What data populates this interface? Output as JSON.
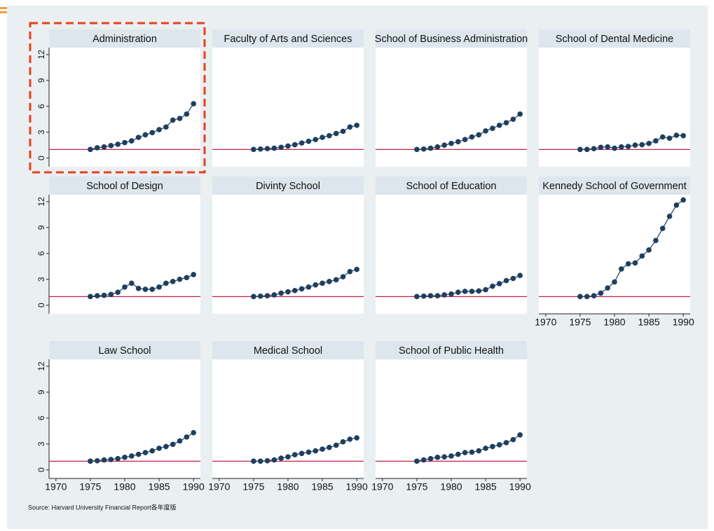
{
  "axes": {
    "xlim": [
      1969,
      1991
    ],
    "xticks": [
      1970,
      1975,
      1980,
      1985,
      1990
    ],
    "ylim": [
      -1,
      12.8
    ],
    "yticks": [
      0,
      3,
      6,
      9,
      12
    ],
    "reference_line": 1,
    "reference_color": "#c0204a",
    "line_color": "#1f3f5f"
  },
  "chart_data": [
    {
      "type": "line",
      "title": "Administration",
      "x": [
        1975,
        1976,
        1977,
        1978,
        1979,
        1980,
        1981,
        1982,
        1983,
        1984,
        1985,
        1986,
        1987,
        1988,
        1989,
        1990
      ],
      "values": [
        1,
        1.2,
        1.3,
        1.45,
        1.6,
        1.8,
        2.0,
        2.4,
        2.7,
        2.95,
        3.3,
        3.6,
        4.4,
        4.6,
        5.1,
        6.3
      ]
    },
    {
      "type": "line",
      "title": "Faculty of Arts and Sciences",
      "x": [
        1975,
        1976,
        1977,
        1978,
        1979,
        1980,
        1981,
        1982,
        1983,
        1984,
        1985,
        1986,
        1987,
        1988,
        1989,
        1990
      ],
      "values": [
        1,
        1.05,
        1.1,
        1.15,
        1.25,
        1.4,
        1.55,
        1.75,
        1.95,
        2.15,
        2.4,
        2.6,
        2.85,
        3.1,
        3.6,
        3.8
      ]
    },
    {
      "type": "line",
      "title": "School of Business Administration",
      "x": [
        1975,
        1976,
        1977,
        1978,
        1979,
        1980,
        1981,
        1982,
        1983,
        1984,
        1985,
        1986,
        1987,
        1988,
        1989,
        1990
      ],
      "values": [
        1,
        1.05,
        1.15,
        1.3,
        1.5,
        1.7,
        1.9,
        2.15,
        2.45,
        2.7,
        3.15,
        3.45,
        3.8,
        4.1,
        4.5,
        5.1
      ]
    },
    {
      "type": "line",
      "title": "School of Dental Medicine",
      "x": [
        1975,
        1976,
        1977,
        1978,
        1979,
        1980,
        1981,
        1982,
        1983,
        1984,
        1985,
        1986,
        1987,
        1988,
        1989,
        1990
      ],
      "values": [
        1,
        1.0,
        1.1,
        1.25,
        1.3,
        1.15,
        1.3,
        1.35,
        1.5,
        1.55,
        1.7,
        2.0,
        2.45,
        2.3,
        2.65,
        2.6
      ]
    },
    {
      "type": "line",
      "title": "School of Design",
      "x": [
        1975,
        1976,
        1977,
        1978,
        1979,
        1980,
        1981,
        1982,
        1983,
        1984,
        1985,
        1986,
        1987,
        1988,
        1989,
        1990
      ],
      "values": [
        1,
        1.1,
        1.15,
        1.25,
        1.5,
        2.1,
        2.55,
        1.95,
        1.85,
        1.85,
        2.1,
        2.55,
        2.75,
        3.0,
        3.2,
        3.55
      ]
    },
    {
      "type": "line",
      "title": "Divinty School",
      "x": [
        1975,
        1976,
        1977,
        1978,
        1979,
        1980,
        1981,
        1982,
        1983,
        1984,
        1985,
        1986,
        1987,
        1988,
        1989,
        1990
      ],
      "values": [
        1,
        1.05,
        1.1,
        1.2,
        1.4,
        1.55,
        1.7,
        1.9,
        2.1,
        2.35,
        2.55,
        2.75,
        2.95,
        3.3,
        3.9,
        4.15
      ]
    },
    {
      "type": "line",
      "title": "School of Education",
      "x": [
        1975,
        1976,
        1977,
        1978,
        1979,
        1980,
        1981,
        1982,
        1983,
        1984,
        1985,
        1986,
        1987,
        1988,
        1989,
        1990
      ],
      "values": [
        1,
        1.05,
        1.1,
        1.1,
        1.2,
        1.3,
        1.5,
        1.6,
        1.6,
        1.65,
        1.8,
        2.2,
        2.5,
        2.85,
        3.1,
        3.45
      ]
    },
    {
      "type": "line",
      "title": "Kennedy School of Government",
      "x": [
        1975,
        1976,
        1977,
        1978,
        1979,
        1980,
        1981,
        1982,
        1983,
        1984,
        1985,
        1986,
        1987,
        1988,
        1989,
        1990
      ],
      "values": [
        1,
        1,
        1.1,
        1.4,
        2,
        2.7,
        4.2,
        4.8,
        4.9,
        5.7,
        6.4,
        7.5,
        8.9,
        10.3,
        11.6,
        12.2
      ]
    },
    {
      "type": "line",
      "title": "Law School",
      "x": [
        1975,
        1976,
        1977,
        1978,
        1979,
        1980,
        1981,
        1982,
        1983,
        1984,
        1985,
        1986,
        1987,
        1988,
        1989,
        1990
      ],
      "values": [
        1,
        1.05,
        1.15,
        1.2,
        1.3,
        1.45,
        1.6,
        1.8,
        2.0,
        2.2,
        2.5,
        2.7,
        2.95,
        3.35,
        3.8,
        4.3
      ]
    },
    {
      "type": "line",
      "title": "Medical School",
      "x": [
        1975,
        1976,
        1977,
        1978,
        1979,
        1980,
        1981,
        1982,
        1983,
        1984,
        1985,
        1986,
        1987,
        1988,
        1989,
        1990
      ],
      "values": [
        1,
        1.0,
        1.05,
        1.15,
        1.35,
        1.5,
        1.75,
        1.9,
        2.05,
        2.2,
        2.4,
        2.6,
        2.85,
        3.25,
        3.55,
        3.7
      ]
    },
    {
      "type": "line",
      "title": "School of Public Health",
      "x": [
        1975,
        1976,
        1977,
        1978,
        1979,
        1980,
        1981,
        1982,
        1983,
        1984,
        1985,
        1986,
        1987,
        1988,
        1989,
        1990
      ],
      "values": [
        1,
        1.15,
        1.3,
        1.45,
        1.5,
        1.6,
        1.8,
        2.0,
        2.05,
        2.2,
        2.5,
        2.7,
        2.9,
        3.15,
        3.5,
        4.05
      ]
    }
  ],
  "source": "Source: Harvard University Financial Report各年度版"
}
